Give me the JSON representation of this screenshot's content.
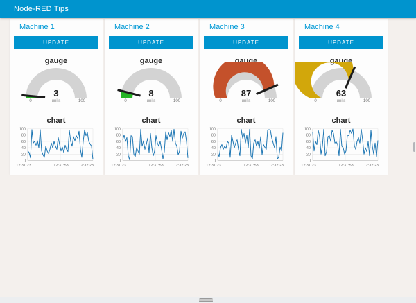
{
  "header": {
    "title": "Node-RED Tips"
  },
  "colors": {
    "accent": "#0094ce",
    "panel_title": "#0099d6",
    "gauge_track": "#d3d3d3",
    "needle": "#1b1b1b",
    "chart_line": "#1f77b4"
  },
  "panels": [
    {
      "title": "Machine 1",
      "button_label": "UPDATE",
      "gauge": {
        "label": "gauge",
        "value": 3,
        "units": "units",
        "min": "0",
        "max": "100",
        "min_val": 0,
        "max_val": 100,
        "color": "#23b423"
      },
      "chart": {
        "label": "chart",
        "y_ticks": [
          0,
          20,
          40,
          60,
          80,
          100
        ],
        "x_ticks": [
          "12:31:23",
          "12:31:53",
          "12:32:23"
        ],
        "ymin": 0,
        "ymax": 100,
        "values": [
          30,
          25,
          8,
          97,
          55,
          60,
          48,
          62,
          40,
          97,
          30,
          18,
          10,
          45,
          30,
          22,
          35,
          55,
          40,
          60,
          45,
          35,
          72,
          50,
          30,
          42,
          25,
          48,
          35,
          28,
          95,
          60,
          45,
          75,
          62,
          78,
          70,
          92,
          35,
          10,
          60,
          96,
          78,
          88,
          60,
          52,
          45,
          3
        ]
      }
    },
    {
      "title": "Machine 2",
      "button_label": "UPDATE",
      "gauge": {
        "label": "gauge",
        "value": 8,
        "units": "units",
        "min": "0",
        "max": "100",
        "min_val": 0,
        "max_val": 100,
        "color": "#23b423"
      },
      "chart": {
        "label": "chart",
        "y_ticks": [
          0,
          20,
          40,
          60,
          80,
          100
        ],
        "x_ticks": [
          "12:31:23",
          "12:31:53",
          "12:32:23"
        ],
        "ymin": 0,
        "ymax": 100,
        "values": [
          65,
          80,
          60,
          72,
          15,
          2,
          78,
          75,
          20,
          12,
          40,
          30,
          20,
          98,
          45,
          62,
          35,
          50,
          70,
          25,
          85,
          40,
          15,
          30,
          78,
          55,
          45,
          60,
          35,
          5,
          28,
          90,
          65,
          88,
          75,
          95,
          60,
          98,
          55,
          45,
          18,
          30,
          92,
          70,
          85,
          90,
          60,
          8
        ]
      }
    },
    {
      "title": "Machine 3",
      "button_label": "UPDATE",
      "gauge": {
        "label": "gauge",
        "value": 87,
        "units": "units",
        "min": "0",
        "max": "100",
        "min_val": 0,
        "max_val": 100,
        "color": "#c4512b"
      },
      "chart": {
        "label": "chart",
        "y_ticks": [
          0,
          20,
          40,
          60,
          80,
          100
        ],
        "x_ticks": [
          "12:31:23",
          "12:31:53",
          "12:32:23"
        ],
        "ymin": 0,
        "ymax": 100,
        "values": [
          25,
          12,
          40,
          50,
          35,
          45,
          38,
          60,
          55,
          10,
          80,
          60,
          40,
          55,
          65,
          35,
          15,
          98,
          70,
          85,
          55,
          80,
          40,
          98,
          15,
          5,
          55,
          65,
          45,
          60,
          38,
          75,
          18,
          50,
          42,
          35,
          95,
          97,
          95,
          70,
          55,
          40,
          75,
          5,
          10,
          42,
          30,
          87
        ]
      }
    },
    {
      "title": "Machine 4",
      "button_label": "UPDATE",
      "gauge": {
        "label": "gauge",
        "value": 63,
        "units": "units",
        "min": "0",
        "max": "100",
        "min_val": 0,
        "max_val": 100,
        "color": "#d2a70b"
      },
      "chart": {
        "label": "chart",
        "y_ticks": [
          0,
          20,
          40,
          60,
          80,
          100
        ],
        "x_ticks": [
          "12:31:23",
          "12:31:53",
          "12:32:23"
        ],
        "ymin": 0,
        "ymax": 100,
        "values": [
          88,
          30,
          60,
          50,
          95,
          75,
          20,
          45,
          98,
          15,
          28,
          75,
          78,
          60,
          95,
          85,
          55,
          58,
          50,
          15,
          98,
          45,
          40,
          20,
          30,
          80,
          78,
          95,
          85,
          99,
          48,
          35,
          60,
          72,
          55,
          98,
          65,
          20,
          40,
          28,
          60,
          15,
          95,
          45,
          20,
          55,
          13,
          63
        ]
      }
    }
  ]
}
